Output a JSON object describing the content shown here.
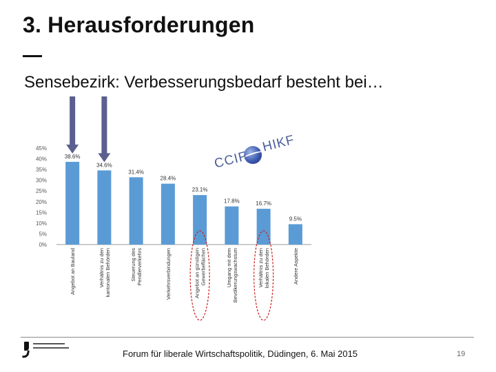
{
  "slide": {
    "title": "3. Herausforderungen",
    "subtitle": "Sensebezirk: Verbesserungsbedarf besteht bei…",
    "footer": "Forum für liberale Wirtschaftspolitik, Düdingen, 6. Mai 2015",
    "page_number": "19",
    "logo_left": "CCIF",
    "logo_right": "HIKF"
  },
  "colors": {
    "bar": "#5b9bd5",
    "arrow": "#5a5f8f",
    "highlight_ellipse": "#cc1f1f",
    "axis": "#999999"
  },
  "chart_data": {
    "type": "bar",
    "categories": [
      "Angebot an Bauland",
      "Verhältnis zu den kantonalen Behörden",
      "Steuerung des Pendlerverkehrs",
      "Verkehrsverbindungen",
      "Angebot an günstigen Gewerbeflächen",
      "Umgang mit dem Bevölkerungswachstum",
      "Verhältnis zu den lokalen Behörden",
      "Andere Aspekte"
    ],
    "values": [
      38.6,
      34.6,
      31.4,
      28.4,
      23.1,
      17.8,
      16.7,
      9.5
    ],
    "data_labels": [
      "38.6%",
      "34.6%",
      "31.4%",
      "28.4%",
      "23.1%",
      "17.8%",
      "16.7%",
      "9.5%"
    ],
    "yticks": [
      "0%",
      "5%",
      "10%",
      "15%",
      "20%",
      "25%",
      "30%",
      "35%",
      "40%",
      "45%"
    ],
    "ylim": [
      0,
      45
    ],
    "grid": false,
    "highlighted_by_arrow": [
      "Angebot an Bauland",
      "Verhältnis zu den kantonalen Behörden"
    ],
    "highlighted_by_ellipse": [
      "Angebot an günstigen Gewerbeflächen",
      "Verhältnis zu den lokalen Behörden"
    ]
  }
}
